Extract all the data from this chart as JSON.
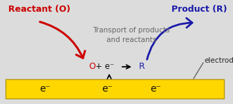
{
  "bg_color": "#dcdcdc",
  "electrode_color": "#FFD700",
  "electrode_edge_color": "#b8960c",
  "reactant_label": "Reactant (O)",
  "reactant_color": "#cc0000",
  "product_label": "Product (R)",
  "product_color": "#1a1aaa",
  "transport_text": "Transport of products\nand reactants",
  "transport_color": "#666666",
  "electrode_label": "electrode",
  "electrode_label_color": "#222222"
}
